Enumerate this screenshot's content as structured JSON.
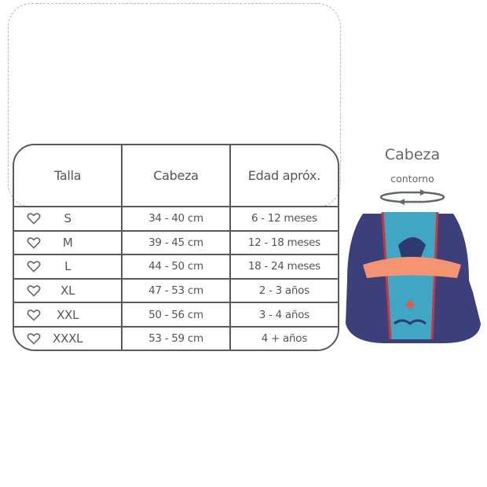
{
  "table": {
    "headers": [
      "Talla",
      "Cabeza",
      "Edad apróx."
    ],
    "rows": [
      {
        "size": "S",
        "head": "34 - 40 cm",
        "age": "6 - 12 meses"
      },
      {
        "size": "M",
        "head": "39 - 45 cm",
        "age": "12 - 18 meses"
      },
      {
        "size": "L",
        "head": "44 - 50 cm",
        "age": "18 - 24 meses"
      },
      {
        "size": "XL",
        "head": "47 - 53 cm",
        "age": "2 - 3 años"
      },
      {
        "size": "XXL",
        "head": "50 - 56 cm",
        "age": "3 - 4 años"
      },
      {
        "size": "XXXL",
        "head": "53 - 59 cm",
        "age": "4 + años"
      }
    ]
  },
  "diagram": {
    "title": "Cabeza",
    "subtitle": "contorno",
    "icon": "rotate-arrows-icon"
  },
  "colors": {
    "hat_navy": "#3b3f7a",
    "hat_pattern": "#3fa6c4",
    "visor": "#f59473",
    "trim": "#d0343c"
  }
}
